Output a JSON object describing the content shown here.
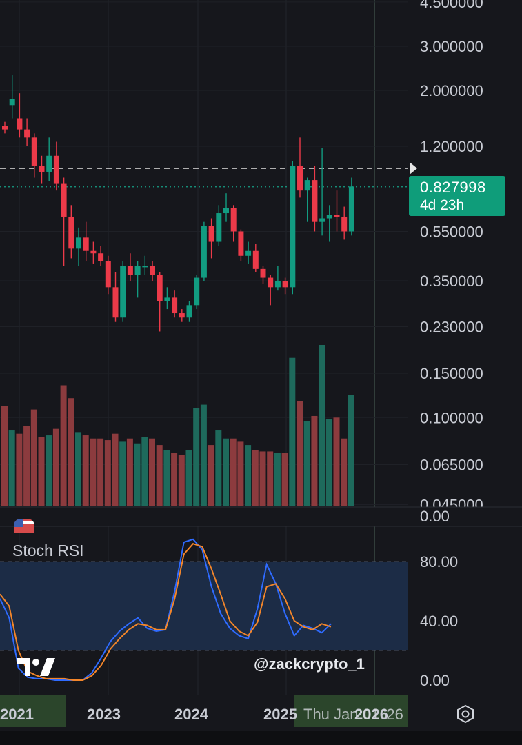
{
  "chart_data": [
    {
      "type": "candlestick",
      "scale": "log",
      "price_axis_labels": [
        "4.500000",
        "3.000000",
        "2.000000",
        "1.200000",
        "0.550000",
        "0.350000",
        "0.230000",
        "0.150000",
        "0.100000",
        "0.065000",
        "0.045000"
      ],
      "price_axis_values": [
        4.5,
        3.0,
        2.0,
        1.2,
        0.55,
        0.35,
        0.23,
        0.15,
        0.1,
        0.065,
        0.045
      ],
      "last_price": "0.827998",
      "countdown": "4d 23h",
      "last_price_value": 0.827998,
      "reference_line_value": 0.98,
      "candles": [
        {
          "o": 1.45,
          "h": 1.5,
          "l": 1.35,
          "c": 1.4
        },
        {
          "o": 1.75,
          "h": 2.3,
          "l": 1.55,
          "c": 1.85
        },
        {
          "o": 1.55,
          "h": 1.95,
          "l": 1.3,
          "c": 1.4
        },
        {
          "o": 1.4,
          "h": 1.55,
          "l": 1.2,
          "c": 1.3
        },
        {
          "o": 1.3,
          "h": 1.35,
          "l": 0.9,
          "c": 1.0
        },
        {
          "o": 1.0,
          "h": 1.1,
          "l": 0.85,
          "c": 0.95
        },
        {
          "o": 0.95,
          "h": 1.3,
          "l": 0.87,
          "c": 1.1
        },
        {
          "o": 1.1,
          "h": 1.25,
          "l": 0.8,
          "c": 0.85
        },
        {
          "o": 0.85,
          "h": 0.9,
          "l": 0.4,
          "c": 0.63
        },
        {
          "o": 0.63,
          "h": 0.7,
          "l": 0.43,
          "c": 0.47
        },
        {
          "o": 0.47,
          "h": 0.57,
          "l": 0.4,
          "c": 0.52
        },
        {
          "o": 0.52,
          "h": 0.6,
          "l": 0.42,
          "c": 0.46
        },
        {
          "o": 0.46,
          "h": 0.5,
          "l": 0.41,
          "c": 0.45
        },
        {
          "o": 0.45,
          "h": 0.48,
          "l": 0.4,
          "c": 0.42
        },
        {
          "o": 0.42,
          "h": 0.44,
          "l": 0.31,
          "c": 0.33
        },
        {
          "o": 0.33,
          "h": 0.38,
          "l": 0.24,
          "c": 0.25
        },
        {
          "o": 0.25,
          "h": 0.42,
          "l": 0.24,
          "c": 0.4
        },
        {
          "o": 0.4,
          "h": 0.45,
          "l": 0.35,
          "c": 0.37
        },
        {
          "o": 0.37,
          "h": 0.42,
          "l": 0.3,
          "c": 0.4
        },
        {
          "o": 0.4,
          "h": 0.44,
          "l": 0.37,
          "c": 0.4
        },
        {
          "o": 0.4,
          "h": 0.42,
          "l": 0.35,
          "c": 0.37
        },
        {
          "o": 0.37,
          "h": 0.38,
          "l": 0.22,
          "c": 0.29
        },
        {
          "o": 0.29,
          "h": 0.33,
          "l": 0.27,
          "c": 0.3
        },
        {
          "o": 0.3,
          "h": 0.32,
          "l": 0.25,
          "c": 0.26
        },
        {
          "o": 0.26,
          "h": 0.27,
          "l": 0.24,
          "c": 0.25
        },
        {
          "o": 0.25,
          "h": 0.29,
          "l": 0.24,
          "c": 0.28
        },
        {
          "o": 0.28,
          "h": 0.37,
          "l": 0.27,
          "c": 0.36
        },
        {
          "o": 0.36,
          "h": 0.6,
          "l": 0.35,
          "c": 0.58
        },
        {
          "o": 0.58,
          "h": 0.62,
          "l": 0.43,
          "c": 0.5
        },
        {
          "o": 0.5,
          "h": 0.7,
          "l": 0.48,
          "c": 0.65
        },
        {
          "o": 0.65,
          "h": 0.78,
          "l": 0.6,
          "c": 0.68
        },
        {
          "o": 0.68,
          "h": 0.7,
          "l": 0.5,
          "c": 0.55
        },
        {
          "o": 0.55,
          "h": 0.56,
          "l": 0.42,
          "c": 0.44
        },
        {
          "o": 0.44,
          "h": 0.5,
          "l": 0.41,
          "c": 0.46
        },
        {
          "o": 0.46,
          "h": 0.49,
          "l": 0.38,
          "c": 0.39
        },
        {
          "o": 0.39,
          "h": 0.4,
          "l": 0.34,
          "c": 0.36
        },
        {
          "o": 0.36,
          "h": 0.37,
          "l": 0.28,
          "c": 0.33
        },
        {
          "o": 0.33,
          "h": 0.4,
          "l": 0.32,
          "c": 0.35
        },
        {
          "o": 0.35,
          "h": 0.36,
          "l": 0.31,
          "c": 0.33
        },
        {
          "o": 0.33,
          "h": 1.05,
          "l": 0.31,
          "c": 1.0
        },
        {
          "o": 1.0,
          "h": 1.3,
          "l": 0.75,
          "c": 0.8
        },
        {
          "o": 0.8,
          "h": 0.9,
          "l": 0.6,
          "c": 0.88
        },
        {
          "o": 0.88,
          "h": 1.0,
          "l": 0.55,
          "c": 0.6
        },
        {
          "o": 0.6,
          "h": 1.18,
          "l": 0.53,
          "c": 0.62
        },
        {
          "o": 0.62,
          "h": 0.7,
          "l": 0.5,
          "c": 0.64
        },
        {
          "o": 0.64,
          "h": 0.8,
          "l": 0.55,
          "c": 0.63
        },
        {
          "o": 0.63,
          "h": 0.69,
          "l": 0.51,
          "c": 0.55
        },
        {
          "o": 0.55,
          "h": 0.9,
          "l": 0.53,
          "c": 0.83
        }
      ],
      "volume": [
        62,
        47,
        45,
        50,
        60,
        43,
        44,
        48,
        75,
        67,
        46,
        44,
        42,
        42,
        41,
        45,
        40,
        42,
        39,
        43,
        42,
        38,
        35,
        33,
        32,
        35,
        61,
        63,
        38,
        47,
        42,
        42,
        40,
        38,
        35,
        34,
        34,
        33,
        33,
        92,
        65,
        53,
        56,
        100,
        54,
        55,
        42,
        69
      ]
    },
    {
      "type": "line",
      "title": "Stoch RSI",
      "y_axis_labels": [
        "80.00",
        "40.00",
        "0.00"
      ],
      "y_axis_values": [
        80,
        40,
        0
      ],
      "upper_axis_label": "0.00",
      "band": [
        20,
        80
      ],
      "midline": 50,
      "series": [
        {
          "color": "#2f6bff",
          "values": [
            55,
            42,
            8,
            2,
            1,
            1,
            0,
            0,
            0,
            0,
            5,
            15,
            26,
            33,
            38,
            42,
            35,
            33,
            34,
            60,
            93,
            95,
            88,
            63,
            45,
            35,
            30,
            28,
            48,
            78,
            65,
            45,
            30,
            37,
            35,
            32,
            38
          ]
        },
        {
          "color": "#f4862a",
          "values": [
            58,
            50,
            20,
            6,
            3,
            1,
            1,
            1,
            0,
            0,
            3,
            10,
            21,
            28,
            34,
            38,
            37,
            34,
            34,
            55,
            85,
            92,
            90,
            75,
            58,
            40,
            33,
            30,
            39,
            63,
            65,
            55,
            40,
            36,
            34,
            38,
            36
          ]
        }
      ],
      "x_axis_labels": [
        "2021",
        "2023",
        "2024",
        "2025",
        "2026",
        "Thu Jan 01 '26"
      ]
    }
  ],
  "colors": {
    "background": "#16171c",
    "up": "#129c81",
    "down": "#ec3a49",
    "volume_up": "#1e6a5c",
    "volume_down": "#8c3b3e",
    "band": "#1c2c46",
    "axis_text": "#c9ccd4"
  },
  "ui": {
    "watermark": "@zackcrypto_1",
    "settings_icon": "hexagon-gear-icon",
    "logo_icon": "tradingview-logo-icon"
  }
}
